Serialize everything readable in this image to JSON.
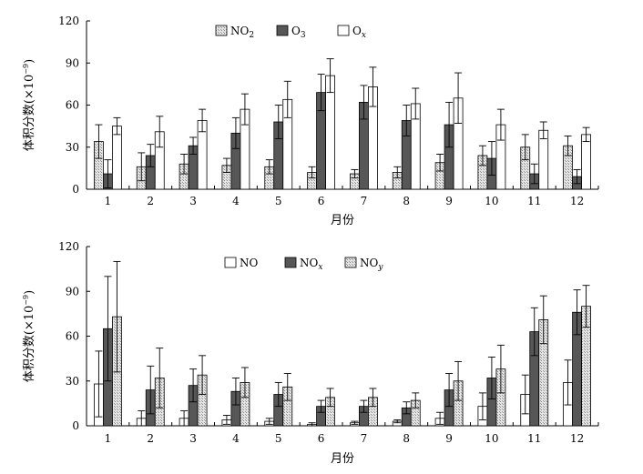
{
  "chart_data": [
    {
      "type": "bar",
      "panel": "top",
      "categories": [
        "1",
        "2",
        "3",
        "4",
        "5",
        "6",
        "7",
        "8",
        "9",
        "10",
        "11",
        "12"
      ],
      "xlabel": "月份",
      "ylabel": "体积分数(×10",
      "ylabel_sup": "−9",
      "ylabel_close": ")",
      "ylim": [
        0,
        120
      ],
      "yticks": [
        "0",
        "30",
        "60",
        "90",
        "120"
      ],
      "legend": [
        {
          "base": "NO",
          "sub": "2",
          "style": "hatch"
        },
        {
          "base": "O",
          "sub": "3",
          "style": "dark"
        },
        {
          "base": "O",
          "sub": "x",
          "style": "white"
        }
      ],
      "series": [
        {
          "name": "NO2",
          "values": [
            34,
            16,
            18,
            17,
            16,
            12,
            11,
            12,
            19,
            24,
            30,
            31
          ],
          "errors": [
            12,
            10,
            7,
            5,
            5,
            4,
            3,
            4,
            6,
            7,
            9,
            7
          ]
        },
        {
          "name": "O3",
          "values": [
            11,
            24,
            31,
            40,
            48,
            69,
            62,
            49,
            46,
            22,
            11,
            9
          ],
          "errors": [
            10,
            8,
            6,
            11,
            12,
            13,
            12,
            11,
            16,
            12,
            7,
            5
          ]
        },
        {
          "name": "Ox",
          "values": [
            45,
            41,
            49,
            57,
            64,
            81,
            73,
            61,
            65,
            46,
            42,
            39
          ],
          "errors": [
            6,
            11,
            8,
            11,
            13,
            12,
            14,
            11,
            18,
            11,
            6,
            5
          ]
        }
      ]
    },
    {
      "type": "bar",
      "panel": "bottom",
      "categories": [
        "1",
        "2",
        "3",
        "4",
        "5",
        "6",
        "7",
        "8",
        "9",
        "10",
        "11",
        "12"
      ],
      "xlabel": "月份",
      "ylabel": "体积分数(×10",
      "ylabel_sup": "−9",
      "ylabel_close": ")",
      "ylim": [
        0,
        120
      ],
      "yticks": [
        "0",
        "30",
        "60",
        "90",
        "120"
      ],
      "legend": [
        {
          "base": "NO",
          "sub": "",
          "style": "white"
        },
        {
          "base": "NO",
          "sub": "x",
          "style": "dark"
        },
        {
          "base": "NO",
          "sub": "y",
          "style": "hatch"
        }
      ],
      "series": [
        {
          "name": "NO",
          "values": [
            28,
            5,
            5,
            4,
            3,
            1,
            2,
            3,
            5,
            13,
            21,
            29
          ],
          "errors": [
            22,
            5,
            5,
            3,
            2,
            1,
            1,
            1,
            4,
            9,
            13,
            15
          ]
        },
        {
          "name": "NOx",
          "values": [
            65,
            24,
            27,
            23,
            21,
            13,
            13,
            12,
            24,
            32,
            63,
            76
          ],
          "errors": [
            35,
            16,
            11,
            9,
            8,
            4,
            4,
            4,
            11,
            14,
            16,
            15
          ]
        },
        {
          "name": "NOy",
          "values": [
            73,
            32,
            34,
            29,
            26,
            19,
            19,
            17,
            30,
            38,
            71,
            80
          ],
          "errors": [
            37,
            20,
            13,
            10,
            9,
            6,
            6,
            5,
            13,
            16,
            16,
            14
          ]
        }
      ]
    }
  ]
}
